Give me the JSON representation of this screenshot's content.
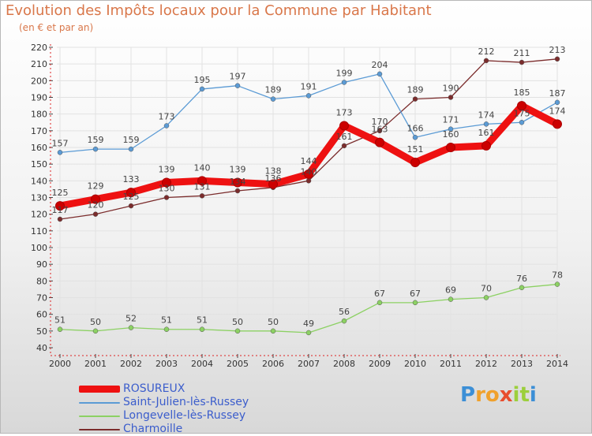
{
  "header": {
    "title": "Evolution des Impôts locaux pour la Commune par Habitant",
    "subtitle": "(en € et par an)"
  },
  "logo": {
    "letters": [
      "P",
      "r",
      "o",
      "x",
      "i",
      "t",
      "i"
    ],
    "colors": [
      "#3c8fd6",
      "#f0a12c",
      "#f0a12c",
      "#e84d2e",
      "#9ccf3c",
      "#9ccf3c",
      "#3c8fd6"
    ]
  },
  "chart_data": {
    "type": "line",
    "title": "Evolution des Impôts locaux pour la Commune par Habitant",
    "subtitle": "(en € et par an)",
    "xlabel": "",
    "ylabel": "",
    "x": [
      2000,
      2001,
      2002,
      2003,
      2004,
      2005,
      2006,
      2007,
      2008,
      2009,
      2010,
      2011,
      2012,
      2013,
      2014
    ],
    "ylim": [
      40,
      220
    ],
    "ytick_step": 10,
    "grid": true,
    "legend_position": "bottom-left",
    "series": [
      {
        "name": "Charmoille",
        "color": "#7b2c2c",
        "values": [
          117,
          120,
          125,
          130,
          131,
          134,
          136,
          140,
          161,
          170,
          189,
          190,
          212,
          211,
          213
        ]
      },
      {
        "name": "Saint-Julien-lès-Russey",
        "color": "#5b9bd5",
        "values": [
          157,
          159,
          159,
          173,
          195,
          197,
          189,
          191,
          199,
          204,
          166,
          171,
          174,
          175,
          187
        ]
      },
      {
        "name": "Longevelle-lès-Russey",
        "color": "#8cd163",
        "values": [
          51,
          50,
          52,
          51,
          51,
          50,
          50,
          49,
          56,
          67,
          67,
          69,
          70,
          76,
          78
        ]
      },
      {
        "name": "ROSUREUX",
        "color": "#ee1111",
        "values": [
          125,
          129,
          133,
          139,
          140,
          139,
          138,
          144,
          173,
          163,
          151,
          160,
          161,
          185,
          174
        ]
      }
    ],
    "legend_order": [
      "ROSUREUX",
      "Saint-Julien-lès-Russey",
      "Longevelle-lès-Russey",
      "Charmoille"
    ]
  }
}
